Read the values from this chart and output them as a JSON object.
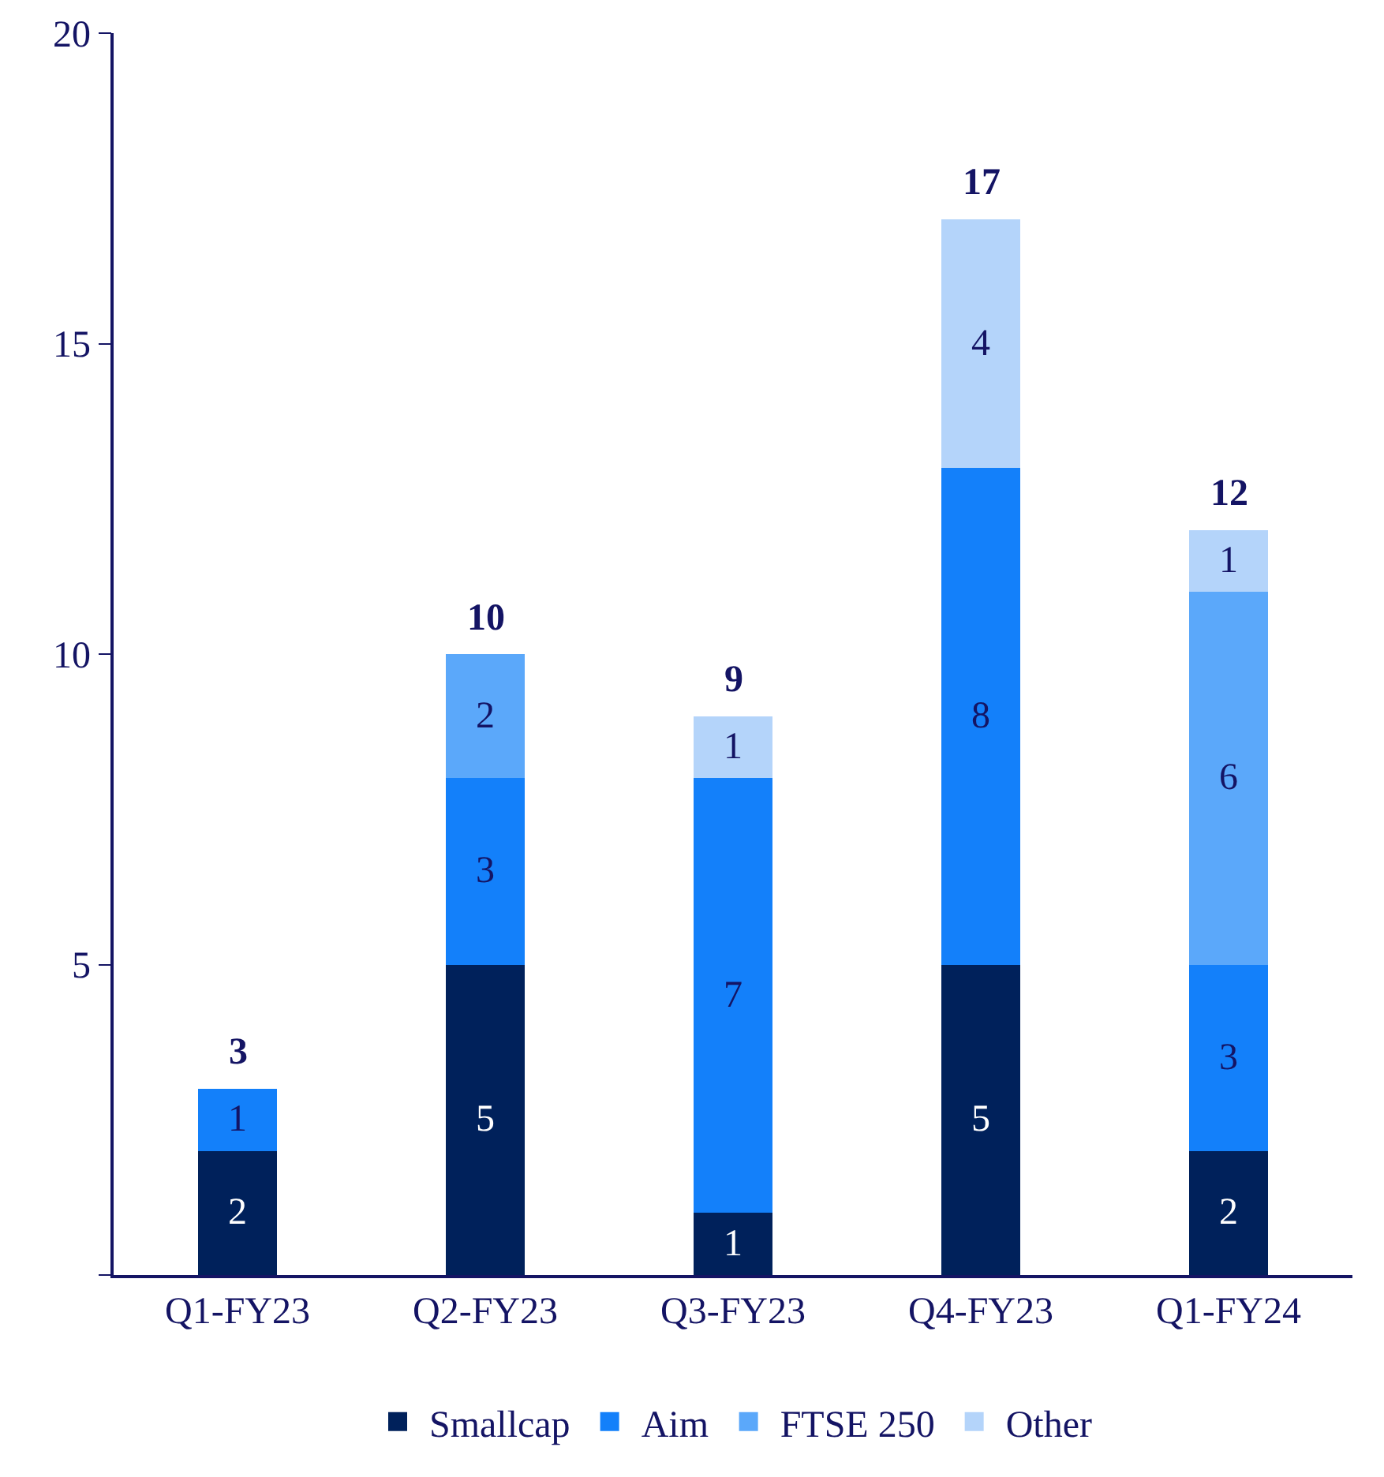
{
  "chart_data": {
    "type": "bar",
    "stacked": true,
    "categories": [
      "Q1-FY23",
      "Q2-FY23",
      "Q3-FY23",
      "Q4-FY23",
      "Q1-FY24"
    ],
    "series": [
      {
        "name": "Smallcap",
        "color": "#00215b",
        "values": [
          2,
          5,
          1,
          5,
          2
        ]
      },
      {
        "name": "Aim",
        "color": "#1380fa",
        "values": [
          1,
          3,
          7,
          8,
          3
        ]
      },
      {
        "name": "FTSE 250",
        "color": "#5ba8fa",
        "values": [
          null,
          2,
          null,
          null,
          6
        ]
      },
      {
        "name": "Other",
        "color": "#b4d4fa",
        "values": [
          null,
          null,
          1,
          4,
          1
        ]
      }
    ],
    "ylim": [
      0,
      20
    ],
    "yticks": [
      {
        "value": 0,
        "label": null
      },
      5,
      10,
      15,
      20
    ],
    "data_labels": true,
    "totals": [
      "3",
      "10",
      "9",
      "17",
      "12"
    ],
    "grid": false,
    "legend": "bottom"
  }
}
